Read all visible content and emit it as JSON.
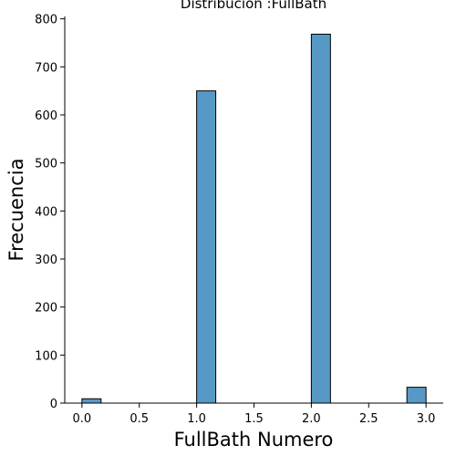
{
  "chart_data": {
    "type": "bar",
    "title": "Distribución :FullBath",
    "xlabel": "FullBath Numero",
    "ylabel": "Frecuencia",
    "xlim": [
      -0.15,
      3.15
    ],
    "ylim": [
      0,
      805
    ],
    "x_ticks": [
      "0.0",
      "0.5",
      "1.0",
      "1.5",
      "2.0",
      "2.5",
      "3.0"
    ],
    "x_tick_values": [
      0,
      0.5,
      1,
      1.5,
      2,
      2.5,
      3
    ],
    "y_ticks": [
      "0",
      "100",
      "200",
      "300",
      "400",
      "500",
      "600",
      "700",
      "800"
    ],
    "y_tick_values": [
      0,
      100,
      200,
      300,
      400,
      500,
      600,
      700,
      800
    ],
    "bin_width": 0.16666667,
    "bins": [
      {
        "x0": 0.0,
        "x1": 0.16666667,
        "count": 9
      },
      {
        "x0": 1.0,
        "x1": 1.16666667,
        "count": 650
      },
      {
        "x0": 2.0,
        "x1": 2.16666667,
        "count": 768
      },
      {
        "x0": 2.83333333,
        "x1": 3.0,
        "count": 33
      }
    ],
    "bar_color": "#5799c6",
    "edge_color": "#000000",
    "grid": false,
    "legend": "none"
  }
}
